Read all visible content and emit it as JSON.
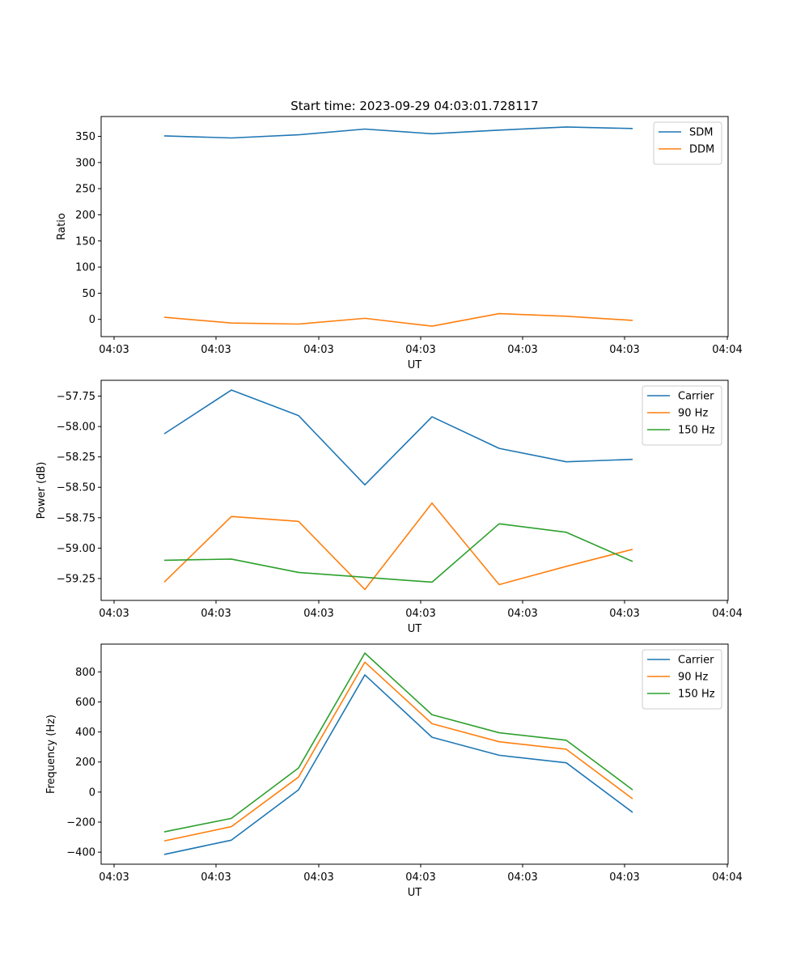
{
  "title": "Start time: 2023-09-29 04:03:01.728117",
  "colors": {
    "blue": "#1f77b4",
    "orange": "#ff7f0e",
    "green": "#2ca02c"
  },
  "chart_data": [
    {
      "type": "line",
      "ylabel": "Ratio",
      "xlabel": "UT",
      "legend_position": "top-right",
      "x_ticks": [
        "04:03",
        "04:03",
        "04:03",
        "04:03",
        "04:03",
        "04:03",
        "04:04"
      ],
      "y_ticks": [
        0,
        50,
        100,
        150,
        200,
        250,
        300,
        350
      ],
      "ylim": [
        -33,
        388
      ],
      "series": [
        {
          "name": "SDM",
          "color": "#1f77b4",
          "values": [
            351,
            347,
            353,
            364,
            355,
            362,
            368,
            365
          ]
        },
        {
          "name": "DDM",
          "color": "#ff7f0e",
          "values": [
            4,
            -7,
            -9,
            2,
            -13,
            11,
            6,
            -2
          ]
        }
      ]
    },
    {
      "type": "line",
      "ylabel": "Power (dB)",
      "xlabel": "UT",
      "legend_position": "top-right",
      "x_ticks": [
        "04:03",
        "04:03",
        "04:03",
        "04:03",
        "04:03",
        "04:03",
        "04:04"
      ],
      "y_ticks": [
        -57.75,
        -58.0,
        -58.25,
        -58.5,
        -58.75,
        -59.0,
        -59.25
      ],
      "y_tick_labels": [
        "−57.75",
        "−58.00",
        "−58.25",
        "−58.50",
        "−58.75",
        "−59.00",
        "−59.25"
      ],
      "ylim": [
        -59.43,
        -57.62
      ],
      "series": [
        {
          "name": "Carrier",
          "color": "#1f77b4",
          "values": [
            -58.06,
            -57.7,
            -57.91,
            -58.48,
            -57.92,
            -58.18,
            -58.29,
            -58.27
          ]
        },
        {
          "name": "90 Hz",
          "color": "#ff7f0e",
          "values": [
            -59.28,
            -58.74,
            -58.78,
            -59.34,
            -58.63,
            -59.3,
            -59.15,
            -59.01
          ]
        },
        {
          "name": "150 Hz",
          "color": "#2ca02c",
          "values": [
            -59.1,
            -59.09,
            -59.2,
            -59.24,
            -59.28,
            -58.8,
            -58.87,
            -59.11
          ]
        }
      ]
    },
    {
      "type": "line",
      "ylabel": "Frequency (Hz)",
      "xlabel": "UT",
      "legend_position": "top-right",
      "x_ticks": [
        "04:03",
        "04:03",
        "04:03",
        "04:03",
        "04:03",
        "04:03",
        "04:04"
      ],
      "y_ticks": [
        800,
        600,
        400,
        200,
        0,
        -200,
        -400
      ],
      "y_tick_labels": [
        "800",
        "600",
        "400",
        "200",
        "0",
        "−200",
        "−400"
      ],
      "ylim": [
        -480,
        985
      ],
      "series": [
        {
          "name": "Carrier",
          "color": "#1f77b4",
          "values": [
            -415,
            -320,
            15,
            780,
            365,
            245,
            195,
            -135
          ]
        },
        {
          "name": "90 Hz",
          "color": "#ff7f0e",
          "values": [
            -325,
            -230,
            100,
            865,
            455,
            335,
            285,
            -45
          ]
        },
        {
          "name": "150 Hz",
          "color": "#2ca02c",
          "values": [
            -265,
            -175,
            160,
            925,
            515,
            395,
            345,
            15
          ]
        }
      ]
    }
  ]
}
